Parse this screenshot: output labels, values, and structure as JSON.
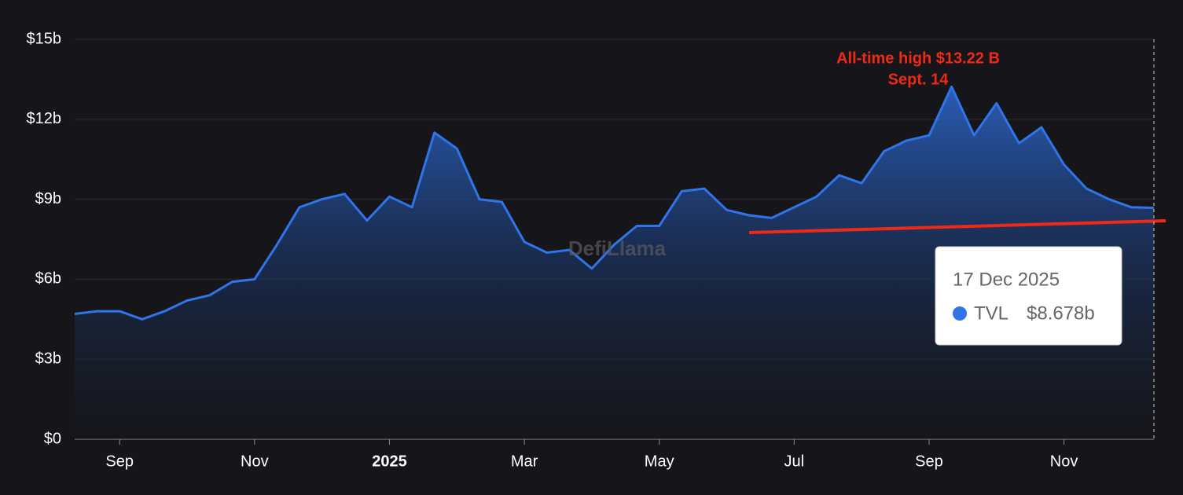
{
  "chart_data": {
    "type": "area",
    "categories": [
      null,
      null,
      "Sep",
      null,
      null,
      null,
      null,
      null,
      "Nov",
      null,
      null,
      null,
      null,
      null,
      "2025",
      null,
      null,
      null,
      null,
      null,
      "Mar",
      null,
      null,
      null,
      null,
      null,
      "May",
      null,
      null,
      null,
      null,
      null,
      "Jul",
      null,
      null,
      null,
      null,
      null,
      "Sep",
      null,
      null,
      null,
      null,
      null,
      "Nov",
      null,
      null,
      null,
      null
    ],
    "series": [
      {
        "name": "TVL",
        "color": "#2f74e8",
        "values": [
          4.7,
          4.8,
          4.8,
          4.5,
          4.8,
          5.2,
          5.4,
          5.9,
          6.0,
          7.3,
          8.7,
          9.0,
          9.2,
          8.2,
          9.1,
          8.7,
          11.5,
          10.9,
          9.0,
          8.9,
          7.4,
          7.0,
          7.1,
          6.4,
          7.3,
          8.0,
          8.0,
          9.3,
          9.4,
          8.6,
          8.4,
          8.3,
          8.7,
          9.1,
          9.9,
          9.6,
          10.8,
          11.2,
          11.4,
          13.22,
          11.4,
          12.6,
          11.1,
          11.7,
          10.3,
          9.4,
          9.0,
          8.7,
          8.678
        ]
      }
    ],
    "ylim": [
      0,
      15
    ],
    "yticks": [
      {
        "value": 0,
        "label": "$0"
      },
      {
        "value": 3,
        "label": "$3b"
      },
      {
        "value": 6,
        "label": "$6b"
      },
      {
        "value": 9,
        "label": "$9b"
      },
      {
        "value": 12,
        "label": "$12b"
      },
      {
        "value": 15,
        "label": "$15b"
      }
    ],
    "grid": true,
    "annotation": [
      "All-time high $13.22 B",
      "Sept. 14"
    ],
    "watermark": "DefiLlama",
    "tooltip": {
      "date": "17 Dec 2025",
      "value_label": "$8.678b"
    }
  }
}
